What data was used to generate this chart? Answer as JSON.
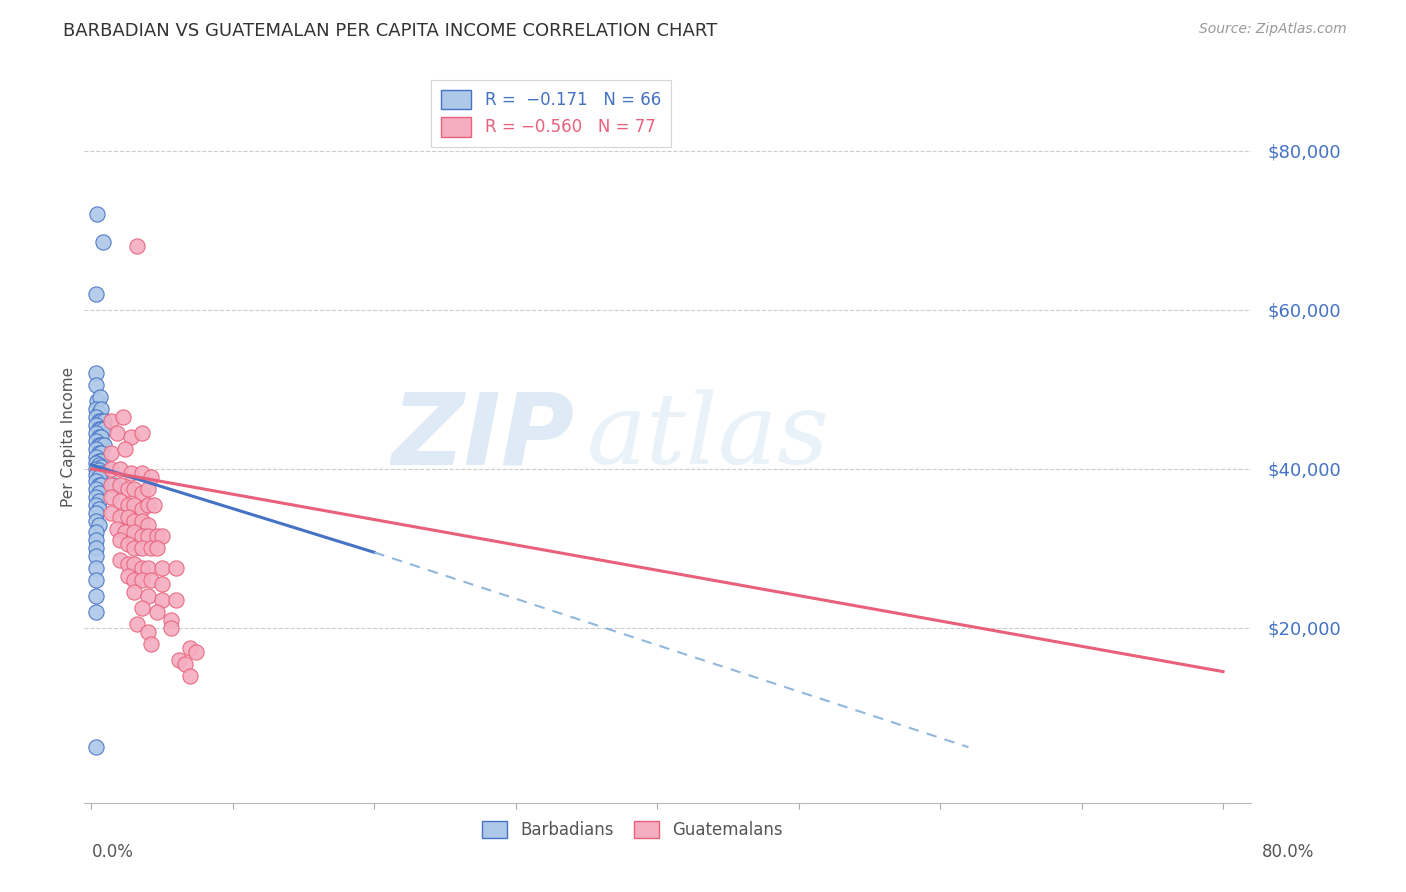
{
  "title": "BARBADIAN VS GUATEMALAN PER CAPITA INCOME CORRELATION CHART",
  "source": "Source: ZipAtlas.com",
  "ylabel": "Per Capita Income",
  "ytick_values": [
    20000,
    40000,
    60000,
    80000
  ],
  "ylim": [
    -2000,
    90000
  ],
  "xlim": [
    -0.005,
    0.82
  ],
  "barbadian_color": "#adc8e8",
  "guatemalan_color": "#f5adc0",
  "barbadian_line_color": "#4472c4",
  "guatemalan_line_color": "#e8607a",
  "dashed_line_color": "#90b8dc",
  "watermark_zip": "ZIP",
  "watermark_atlas": "atlas",
  "barbadian_points": [
    [
      0.004,
      72000
    ],
    [
      0.008,
      68500
    ],
    [
      0.003,
      62000
    ],
    [
      0.003,
      52000
    ],
    [
      0.003,
      50500
    ],
    [
      0.004,
      48500
    ],
    [
      0.006,
      49000
    ],
    [
      0.003,
      47500
    ],
    [
      0.005,
      47000
    ],
    [
      0.007,
      47500
    ],
    [
      0.003,
      46500
    ],
    [
      0.005,
      46000
    ],
    [
      0.007,
      46000
    ],
    [
      0.009,
      46000
    ],
    [
      0.003,
      45500
    ],
    [
      0.005,
      45000
    ],
    [
      0.007,
      45000
    ],
    [
      0.009,
      45000
    ],
    [
      0.003,
      44500
    ],
    [
      0.005,
      44000
    ],
    [
      0.007,
      44000
    ],
    [
      0.003,
      43500
    ],
    [
      0.005,
      43000
    ],
    [
      0.007,
      43000
    ],
    [
      0.009,
      43000
    ],
    [
      0.003,
      42500
    ],
    [
      0.005,
      42000
    ],
    [
      0.007,
      42000
    ],
    [
      0.003,
      41500
    ],
    [
      0.005,
      41000
    ],
    [
      0.007,
      41000
    ],
    [
      0.003,
      40800
    ],
    [
      0.005,
      40500
    ],
    [
      0.007,
      40200
    ],
    [
      0.003,
      40000
    ],
    [
      0.005,
      39800
    ],
    [
      0.007,
      39500
    ],
    [
      0.003,
      39200
    ],
    [
      0.005,
      39000
    ],
    [
      0.003,
      38500
    ],
    [
      0.005,
      38000
    ],
    [
      0.007,
      38000
    ],
    [
      0.003,
      37500
    ],
    [
      0.005,
      37000
    ],
    [
      0.003,
      36500
    ],
    [
      0.005,
      36000
    ],
    [
      0.003,
      35500
    ],
    [
      0.005,
      35000
    ],
    [
      0.003,
      34500
    ],
    [
      0.003,
      33500
    ],
    [
      0.005,
      33000
    ],
    [
      0.003,
      32000
    ],
    [
      0.003,
      31000
    ],
    [
      0.003,
      30000
    ],
    [
      0.003,
      29000
    ],
    [
      0.003,
      27500
    ],
    [
      0.003,
      26000
    ],
    [
      0.003,
      24000
    ],
    [
      0.003,
      22000
    ],
    [
      0.016,
      38000
    ],
    [
      0.003,
      5000
    ]
  ],
  "guatemalan_points": [
    [
      0.032,
      68000
    ],
    [
      0.014,
      46000
    ],
    [
      0.022,
      46500
    ],
    [
      0.018,
      44500
    ],
    [
      0.028,
      44000
    ],
    [
      0.036,
      44500
    ],
    [
      0.014,
      42000
    ],
    [
      0.024,
      42500
    ],
    [
      0.014,
      40000
    ],
    [
      0.02,
      40000
    ],
    [
      0.028,
      39500
    ],
    [
      0.036,
      39500
    ],
    [
      0.042,
      39000
    ],
    [
      0.014,
      38000
    ],
    [
      0.02,
      38000
    ],
    [
      0.026,
      37500
    ],
    [
      0.03,
      37500
    ],
    [
      0.036,
      37000
    ],
    [
      0.04,
      37500
    ],
    [
      0.014,
      36500
    ],
    [
      0.02,
      36000
    ],
    [
      0.026,
      35500
    ],
    [
      0.03,
      35500
    ],
    [
      0.036,
      35000
    ],
    [
      0.04,
      35500
    ],
    [
      0.044,
      35500
    ],
    [
      0.014,
      34500
    ],
    [
      0.02,
      34000
    ],
    [
      0.026,
      34000
    ],
    [
      0.03,
      33500
    ],
    [
      0.036,
      33500
    ],
    [
      0.04,
      33000
    ],
    [
      0.018,
      32500
    ],
    [
      0.024,
      32000
    ],
    [
      0.03,
      32000
    ],
    [
      0.036,
      31500
    ],
    [
      0.04,
      31500
    ],
    [
      0.046,
      31500
    ],
    [
      0.05,
      31500
    ],
    [
      0.02,
      31000
    ],
    [
      0.026,
      30500
    ],
    [
      0.03,
      30000
    ],
    [
      0.036,
      30000
    ],
    [
      0.042,
      30000
    ],
    [
      0.046,
      30000
    ],
    [
      0.02,
      28500
    ],
    [
      0.026,
      28000
    ],
    [
      0.03,
      28000
    ],
    [
      0.036,
      27500
    ],
    [
      0.04,
      27500
    ],
    [
      0.05,
      27500
    ],
    [
      0.06,
      27500
    ],
    [
      0.026,
      26500
    ],
    [
      0.03,
      26000
    ],
    [
      0.036,
      26000
    ],
    [
      0.042,
      26000
    ],
    [
      0.05,
      25500
    ],
    [
      0.03,
      24500
    ],
    [
      0.04,
      24000
    ],
    [
      0.05,
      23500
    ],
    [
      0.06,
      23500
    ],
    [
      0.036,
      22500
    ],
    [
      0.046,
      22000
    ],
    [
      0.056,
      21000
    ],
    [
      0.032,
      20500
    ],
    [
      0.04,
      19500
    ],
    [
      0.056,
      20000
    ],
    [
      0.042,
      18000
    ],
    [
      0.07,
      17500
    ],
    [
      0.074,
      17000
    ],
    [
      0.062,
      16000
    ],
    [
      0.066,
      15500
    ],
    [
      0.07,
      14000
    ]
  ],
  "barb_line_x": [
    0.0,
    0.2
  ],
  "barb_line_y": [
    40500,
    29500
  ],
  "guat_line_x": [
    0.0,
    0.8
  ],
  "guat_line_y": [
    40000,
    14500
  ],
  "dash_line_x": [
    0.2,
    0.62
  ],
  "dash_line_y": [
    29500,
    5000
  ]
}
